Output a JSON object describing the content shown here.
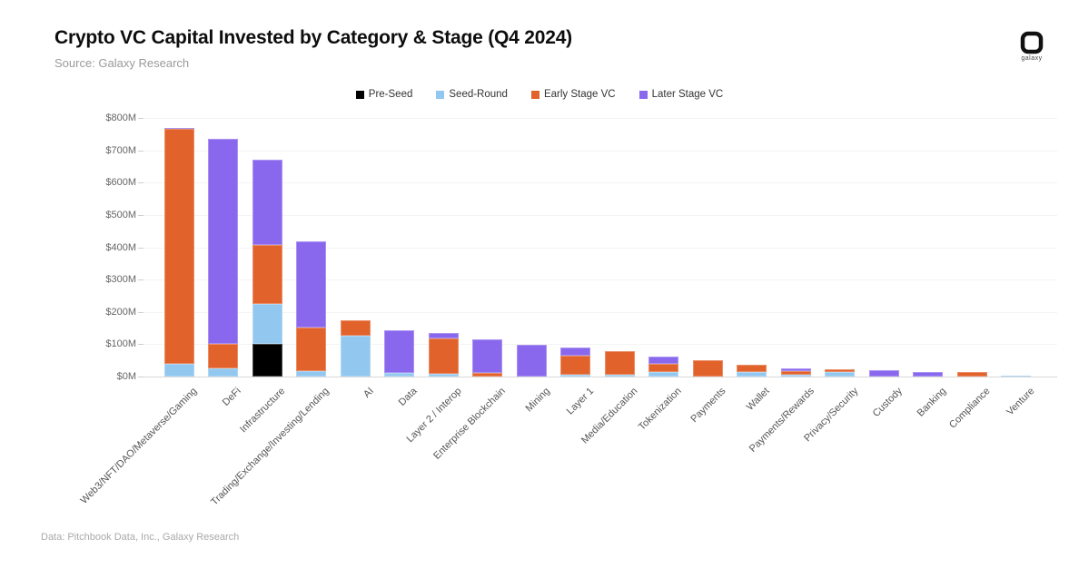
{
  "header": {
    "title": "Crypto VC Capital Invested by Category & Stage (Q4 2024)",
    "source": "Source: Galaxy Research"
  },
  "logo": {
    "name": "galaxy-logo",
    "label": "galaxy"
  },
  "footer": {
    "credit": "Data: Pitchbook Data, Inc., Galaxy Research"
  },
  "chart_data": {
    "type": "bar",
    "stacked": true,
    "title": "Crypto VC Capital Invested by Category & Stage (Q4 2024)",
    "xlabel": "",
    "ylabel": "",
    "ylim": [
      0,
      800
    ],
    "ytick_step": 100,
    "ytick_labels": [
      "$0M",
      "$100M",
      "$200M",
      "$300M",
      "$400M",
      "$500M",
      "$600M",
      "$700M",
      "$800M"
    ],
    "grid": true,
    "legend_position": "top-center",
    "units": "USD millions",
    "categories": [
      "Web3/NFT/DAO/Metaverse/Gaming",
      "DeFi",
      "Infrastructure",
      "Trading/Exchange/Investing/Lending",
      "AI",
      "Data",
      "Layer 2 / Interop",
      "Enterprise Blockchain",
      "Mining",
      "Layer 1",
      "Media/Education",
      "Tokenization",
      "Payments",
      "Wallet",
      "Payments/Rewards",
      "Privacy/Security",
      "Custody",
      "Banking",
      "Compliance",
      "Venture"
    ],
    "series": [
      {
        "name": "Pre-Seed",
        "color": "#000000",
        "values": [
          0,
          0,
          100,
          0,
          0,
          0,
          0,
          0,
          0,
          0,
          0,
          0,
          0,
          0,
          0,
          0,
          0,
          0,
          0,
          0
        ]
      },
      {
        "name": "Seed-Round",
        "color": "#92C8F0",
        "values": [
          38,
          25,
          125,
          18,
          126,
          12,
          8,
          0,
          0,
          5,
          5,
          14,
          0,
          13,
          5,
          15,
          0,
          0,
          0,
          2
        ]
      },
      {
        "name": "Early Stage VC",
        "color": "#E2622B",
        "values": [
          727,
          76,
          182,
          134,
          48,
          0,
          110,
          12,
          0,
          60,
          74,
          25,
          50,
          24,
          12,
          7,
          0,
          0,
          15,
          0
        ]
      },
      {
        "name": "Later Stage VC",
        "color": "#8A68EE",
        "values": [
          5,
          634,
          264,
          267,
          0,
          131,
          17,
          103,
          98,
          25,
          0,
          23,
          0,
          0,
          8,
          0,
          20,
          15,
          0,
          0
        ]
      }
    ],
    "totals": [
      770,
      735,
      671,
      419,
      174,
      143,
      135,
      115,
      98,
      90,
      79,
      62,
      50,
      37,
      25,
      22,
      20,
      15,
      15,
      2
    ]
  }
}
